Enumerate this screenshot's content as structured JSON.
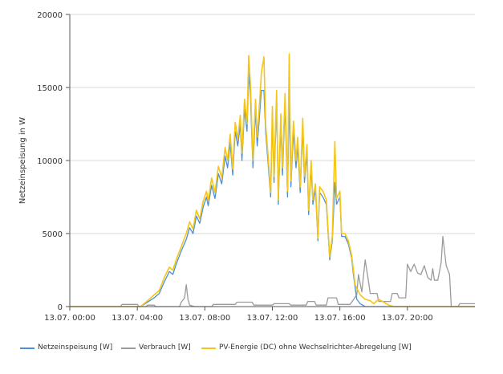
{
  "chart_data": {
    "type": "line",
    "ylabel": "Netzeinspeisung in W",
    "ylim": [
      0,
      20000
    ],
    "yticks": [
      "0",
      "5000",
      "10000",
      "15000",
      "20000"
    ],
    "xlim_hours": [
      0,
      24
    ],
    "xticks": [
      {
        "hour": 0,
        "label": "13.07. 00:00"
      },
      {
        "hour": 4,
        "label": "13.07. 04:00"
      },
      {
        "hour": 8,
        "label": "13.07. 08:00"
      },
      {
        "hour": 12,
        "label": "13.07. 12:00"
      },
      {
        "hour": 16,
        "label": "13.07. 16:00"
      },
      {
        "hour": 20,
        "label": "13.07. 20:00"
      }
    ],
    "grid": "horizontal",
    "legend_position": "bottom-left",
    "series": [
      {
        "name": "Netzeinspeisung [W]",
        "color": "#4a90d9",
        "points": [
          [
            0,
            0
          ],
          [
            4.2,
            0
          ],
          [
            4.6,
            300
          ],
          [
            5.0,
            600
          ],
          [
            5.3,
            900
          ],
          [
            5.6,
            1700
          ],
          [
            5.9,
            2400
          ],
          [
            6.1,
            2200
          ],
          [
            6.3,
            2900
          ],
          [
            6.6,
            3800
          ],
          [
            6.9,
            4600
          ],
          [
            7.1,
            5400
          ],
          [
            7.3,
            5000
          ],
          [
            7.5,
            6200
          ],
          [
            7.7,
            5700
          ],
          [
            7.9,
            6800
          ],
          [
            8.1,
            7500
          ],
          [
            8.2,
            6900
          ],
          [
            8.4,
            8300
          ],
          [
            8.6,
            7400
          ],
          [
            8.8,
            9100
          ],
          [
            9.0,
            8400
          ],
          [
            9.2,
            10300
          ],
          [
            9.35,
            9500
          ],
          [
            9.5,
            11200
          ],
          [
            9.65,
            9000
          ],
          [
            9.8,
            12000
          ],
          [
            9.95,
            11000
          ],
          [
            10.1,
            12500
          ],
          [
            10.2,
            10000
          ],
          [
            10.35,
            13500
          ],
          [
            10.5,
            12000
          ],
          [
            10.6,
            16000
          ],
          [
            10.7,
            14500
          ],
          [
            10.85,
            9500
          ],
          [
            11.0,
            13500
          ],
          [
            11.1,
            11000
          ],
          [
            11.2,
            12500
          ],
          [
            11.35,
            14800
          ],
          [
            11.5,
            14800
          ],
          [
            11.6,
            12000
          ],
          [
            11.75,
            9800
          ],
          [
            11.9,
            7500
          ],
          [
            12.0,
            13000
          ],
          [
            12.1,
            8500
          ],
          [
            12.25,
            14000
          ],
          [
            12.35,
            7000
          ],
          [
            12.5,
            12500
          ],
          [
            12.6,
            9000
          ],
          [
            12.75,
            13800
          ],
          [
            12.9,
            7500
          ],
          [
            13.0,
            14300
          ],
          [
            13.1,
            8200
          ],
          [
            13.25,
            12000
          ],
          [
            13.4,
            9500
          ],
          [
            13.5,
            11000
          ],
          [
            13.65,
            7800
          ],
          [
            13.8,
            12200
          ],
          [
            13.9,
            8500
          ],
          [
            14.05,
            10500
          ],
          [
            14.15,
            6300
          ],
          [
            14.3,
            9500
          ],
          [
            14.4,
            7000
          ],
          [
            14.55,
            8000
          ],
          [
            14.7,
            4500
          ],
          [
            14.8,
            7800
          ],
          [
            15.0,
            7500
          ],
          [
            15.2,
            7000
          ],
          [
            15.4,
            3200
          ],
          [
            15.55,
            4500
          ],
          [
            15.7,
            8500
          ],
          [
            15.8,
            7000
          ],
          [
            16.0,
            7500
          ],
          [
            16.1,
            4800
          ],
          [
            16.3,
            4800
          ],
          [
            16.5,
            4300
          ],
          [
            16.7,
            3300
          ],
          [
            16.8,
            2200
          ],
          [
            17.0,
            500
          ],
          [
            17.2,
            200
          ],
          [
            17.5,
            0
          ],
          [
            24,
            0
          ]
        ]
      },
      {
        "name": "Verbrauch [W]",
        "color": "#9b9b9b",
        "points": [
          [
            0,
            0
          ],
          [
            3.0,
            0
          ],
          [
            3.1,
            150
          ],
          [
            4.0,
            150
          ],
          [
            4.1,
            0
          ],
          [
            4.5,
            0
          ],
          [
            4.6,
            100
          ],
          [
            5.0,
            100
          ],
          [
            5.1,
            0
          ],
          [
            6.5,
            0
          ],
          [
            6.6,
            300
          ],
          [
            6.8,
            600
          ],
          [
            6.9,
            1500
          ],
          [
            7.0,
            500
          ],
          [
            7.1,
            100
          ],
          [
            7.4,
            0
          ],
          [
            8.4,
            0
          ],
          [
            8.5,
            150
          ],
          [
            9.8,
            150
          ],
          [
            9.9,
            300
          ],
          [
            10.8,
            300
          ],
          [
            10.9,
            100
          ],
          [
            12.0,
            100
          ],
          [
            12.1,
            200
          ],
          [
            13.0,
            200
          ],
          [
            13.1,
            100
          ],
          [
            14.0,
            100
          ],
          [
            14.1,
            350
          ],
          [
            14.5,
            350
          ],
          [
            14.6,
            100
          ],
          [
            15.2,
            100
          ],
          [
            15.3,
            600
          ],
          [
            15.8,
            600
          ],
          [
            15.9,
            150
          ],
          [
            16.6,
            150
          ],
          [
            16.7,
            300
          ],
          [
            17.0,
            800
          ],
          [
            17.1,
            2200
          ],
          [
            17.3,
            1000
          ],
          [
            17.5,
            3200
          ],
          [
            17.7,
            1700
          ],
          [
            17.8,
            900
          ],
          [
            18.2,
            900
          ],
          [
            18.3,
            350
          ],
          [
            19.0,
            350
          ],
          [
            19.1,
            900
          ],
          [
            19.4,
            900
          ],
          [
            19.5,
            600
          ],
          [
            19.9,
            600
          ],
          [
            20.0,
            2900
          ],
          [
            20.2,
            2400
          ],
          [
            20.4,
            2900
          ],
          [
            20.6,
            2300
          ],
          [
            20.8,
            2200
          ],
          [
            21.0,
            2800
          ],
          [
            21.2,
            2000
          ],
          [
            21.4,
            1800
          ],
          [
            21.5,
            2600
          ],
          [
            21.6,
            1800
          ],
          [
            21.8,
            1800
          ],
          [
            22.0,
            3000
          ],
          [
            22.1,
            4800
          ],
          [
            22.3,
            2800
          ],
          [
            22.5,
            2200
          ],
          [
            22.6,
            0
          ],
          [
            23.0,
            0
          ],
          [
            23.1,
            200
          ],
          [
            24,
            200
          ]
        ]
      },
      {
        "name": "PV-Energie (DC) ohne Wechselrichter-Abregelung [W]",
        "color": "#f5c518",
        "points": [
          [
            0,
            0
          ],
          [
            4.2,
            0
          ],
          [
            4.6,
            400
          ],
          [
            5.0,
            800
          ],
          [
            5.3,
            1100
          ],
          [
            5.6,
            2000
          ],
          [
            5.9,
            2700
          ],
          [
            6.1,
            2500
          ],
          [
            6.3,
            3200
          ],
          [
            6.6,
            4100
          ],
          [
            6.9,
            5000
          ],
          [
            7.1,
            5800
          ],
          [
            7.3,
            5300
          ],
          [
            7.5,
            6600
          ],
          [
            7.7,
            6000
          ],
          [
            7.9,
            7200
          ],
          [
            8.1,
            7900
          ],
          [
            8.2,
            7200
          ],
          [
            8.4,
            8800
          ],
          [
            8.6,
            7800
          ],
          [
            8.8,
            9600
          ],
          [
            9.0,
            8800
          ],
          [
            9.2,
            10900
          ],
          [
            9.35,
            10000
          ],
          [
            9.5,
            11800
          ],
          [
            9.65,
            9400
          ],
          [
            9.8,
            12600
          ],
          [
            9.95,
            11500
          ],
          [
            10.1,
            13100
          ],
          [
            10.2,
            10500
          ],
          [
            10.35,
            14200
          ],
          [
            10.5,
            12500
          ],
          [
            10.6,
            17200
          ],
          [
            10.7,
            15300
          ],
          [
            10.85,
            10000
          ],
          [
            11.0,
            14200
          ],
          [
            11.1,
            11600
          ],
          [
            11.2,
            13200
          ],
          [
            11.35,
            16000
          ],
          [
            11.5,
            17100
          ],
          [
            11.6,
            12500
          ],
          [
            11.75,
            10300
          ],
          [
            11.9,
            7800
          ],
          [
            12.0,
            13700
          ],
          [
            12.1,
            8900
          ],
          [
            12.25,
            14800
          ],
          [
            12.35,
            7300
          ],
          [
            12.5,
            13200
          ],
          [
            12.6,
            9500
          ],
          [
            12.75,
            14600
          ],
          [
            12.9,
            7900
          ],
          [
            13.0,
            17300
          ],
          [
            13.1,
            8600
          ],
          [
            13.25,
            12700
          ],
          [
            13.4,
            10000
          ],
          [
            13.5,
            11600
          ],
          [
            13.65,
            8200
          ],
          [
            13.8,
            12900
          ],
          [
            13.9,
            8900
          ],
          [
            14.05,
            11100
          ],
          [
            14.15,
            6600
          ],
          [
            14.3,
            10000
          ],
          [
            14.4,
            7300
          ],
          [
            14.55,
            8400
          ],
          [
            14.7,
            4700
          ],
          [
            14.8,
            8200
          ],
          [
            15.0,
            7900
          ],
          [
            15.2,
            7300
          ],
          [
            15.4,
            3400
          ],
          [
            15.55,
            4800
          ],
          [
            15.7,
            11300
          ],
          [
            15.8,
            7400
          ],
          [
            16.0,
            7900
          ],
          [
            16.1,
            5000
          ],
          [
            16.3,
            5000
          ],
          [
            16.5,
            4500
          ],
          [
            16.7,
            3500
          ],
          [
            16.9,
            1500
          ],
          [
            17.2,
            800
          ],
          [
            17.5,
            500
          ],
          [
            17.8,
            400
          ],
          [
            18.0,
            200
          ],
          [
            18.3,
            500
          ],
          [
            18.6,
            300
          ],
          [
            18.9,
            100
          ],
          [
            19.2,
            0
          ],
          [
            24,
            0
          ]
        ]
      }
    ]
  }
}
